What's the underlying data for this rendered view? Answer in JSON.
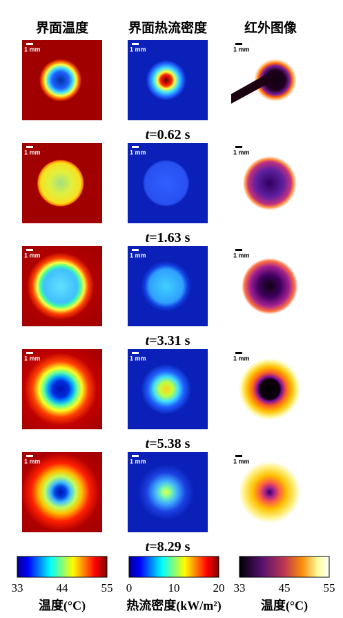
{
  "columns": [
    "界面温度",
    "界面热流密度",
    "红外图像"
  ],
  "scale_label": "1 mm",
  "times": [
    {
      "var": "t",
      "value": "=0.62 s"
    },
    {
      "var": "t",
      "value": "=1.63 s"
    },
    {
      "var": "t",
      "value": "=3.31 s"
    },
    {
      "var": "t",
      "value": "=5.38 s"
    },
    {
      "var": "t",
      "value": "=8.29 s"
    }
  ],
  "colorbars": [
    {
      "ticks": [
        "33",
        "44",
        "55"
      ],
      "label": "温度(°C)"
    },
    {
      "ticks": [
        "0",
        "10",
        "20"
      ],
      "label": "热流密度(kW/m²)"
    },
    {
      "ticks": [
        "33",
        "45",
        "55"
      ],
      "label": "温度(°C)"
    }
  ]
}
